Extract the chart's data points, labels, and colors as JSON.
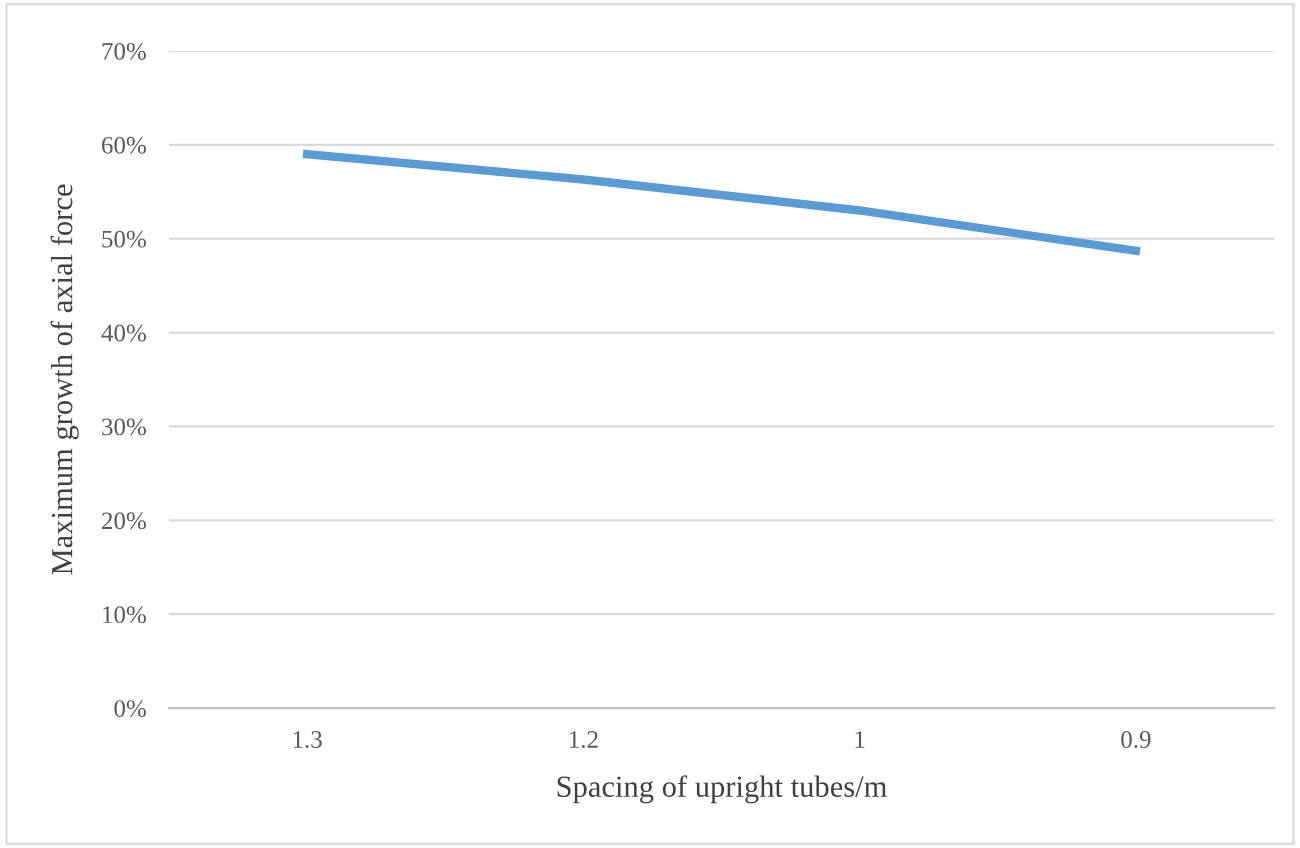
{
  "chart_data": {
    "type": "line",
    "xlabel": "Spacing of upright tubes/m",
    "ylabel": "Maximum growth of axial force",
    "categories": [
      "1.3",
      "1.2",
      "1",
      "0.9"
    ],
    "series": [
      {
        "color": "#5b9bd5",
        "values": [
          59,
          56.3,
          53,
          48.7
        ]
      }
    ],
    "ylim": [
      0,
      70
    ],
    "yticks": [
      {
        "value": 0,
        "label": "0%"
      },
      {
        "value": 10,
        "label": "10%"
      },
      {
        "value": 20,
        "label": "20%"
      },
      {
        "value": 30,
        "label": "30%"
      },
      {
        "value": 40,
        "label": "40%"
      },
      {
        "value": 50,
        "label": "50%"
      },
      {
        "value": 60,
        "label": "60%"
      },
      {
        "value": 70,
        "label": "70%"
      }
    ],
    "grid": "y",
    "legend": false,
    "marker": "none",
    "line_style": "solid"
  }
}
